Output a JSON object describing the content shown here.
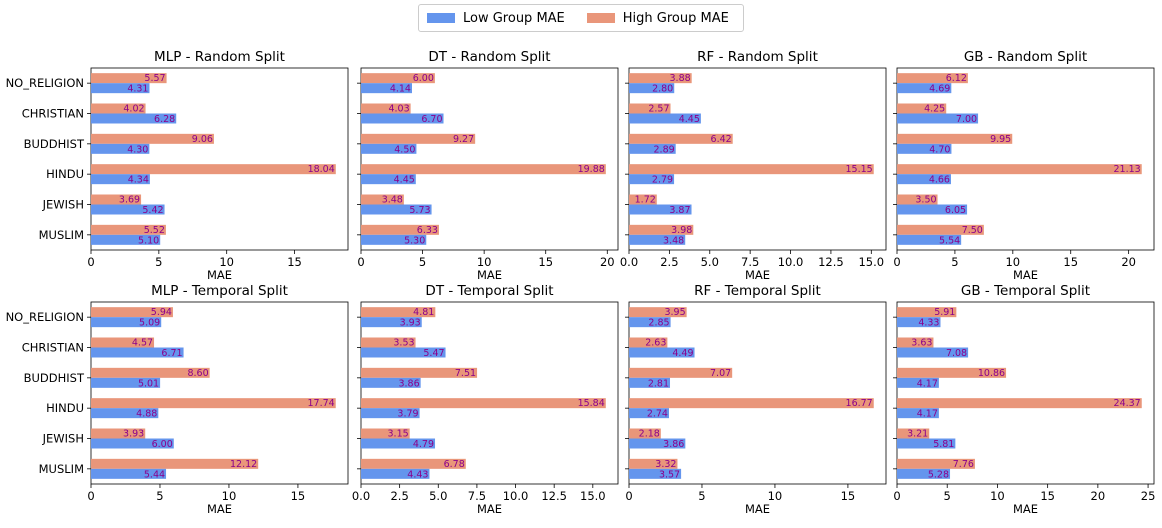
{
  "chart_data": {
    "type": "bar",
    "orientation": "horizontal",
    "categories": [
      "NO_RELIGION",
      "CHRISTIAN",
      "BUDDHIST",
      "HINDU",
      "JEWISH",
      "MUSLIM"
    ],
    "legend": {
      "position": "top-center",
      "entries": [
        {
          "name": "Low Group MAE",
          "color": "#6495ED"
        },
        {
          "name": "High Group MAE",
          "color": "#E9967A"
        }
      ]
    },
    "value_label_color": "#8B008B",
    "panels": [
      {
        "title": "MLP - Random Split",
        "xlabel": "MAE",
        "xlim": [
          0,
          18.94
        ],
        "xticks": [
          0,
          5,
          10,
          15
        ],
        "xtick_labels": [
          "0",
          "5",
          "10",
          "15"
        ],
        "show_category_labels": true,
        "series": [
          {
            "name": "Low Group MAE",
            "values": [
              4.31,
              6.28,
              4.3,
              4.34,
              5.42,
              5.1
            ]
          },
          {
            "name": "High Group MAE",
            "values": [
              5.57,
              4.02,
              9.06,
              18.04,
              3.69,
              5.52
            ]
          }
        ]
      },
      {
        "title": "DT - Random Split",
        "xlabel": "MAE",
        "xlim": [
          0,
          20.87
        ],
        "xticks": [
          0,
          5,
          10,
          15,
          20
        ],
        "xtick_labels": [
          "0",
          "5",
          "10",
          "15",
          "20"
        ],
        "show_category_labels": false,
        "series": [
          {
            "name": "Low Group MAE",
            "values": [
              4.14,
              6.7,
              4.5,
              4.45,
              5.73,
              5.3
            ]
          },
          {
            "name": "High Group MAE",
            "values": [
              6.0,
              4.03,
              9.27,
              19.88,
              3.48,
              6.33
            ]
          }
        ]
      },
      {
        "title": "RF - Random Split",
        "xlabel": "MAE",
        "xlim": [
          0,
          15.91
        ],
        "xticks": [
          0,
          2.5,
          5,
          7.5,
          10,
          12.5,
          15
        ],
        "xtick_labels": [
          "0.0",
          "2.5",
          "5.0",
          "7.5",
          "10.0",
          "12.5",
          "15.0"
        ],
        "show_category_labels": false,
        "series": [
          {
            "name": "Low Group MAE",
            "values": [
              2.8,
              4.45,
              2.89,
              2.79,
              3.87,
              3.48
            ]
          },
          {
            "name": "High Group MAE",
            "values": [
              3.88,
              2.57,
              6.42,
              15.15,
              1.72,
              3.98
            ]
          }
        ]
      },
      {
        "title": "GB - Random Split",
        "xlabel": "MAE",
        "xlim": [
          0,
          22.19
        ],
        "xticks": [
          0,
          5,
          10,
          15,
          20
        ],
        "xtick_labels": [
          "0",
          "5",
          "10",
          "15",
          "20"
        ],
        "show_category_labels": false,
        "series": [
          {
            "name": "Low Group MAE",
            "values": [
              4.69,
              7.0,
              4.7,
              4.66,
              6.05,
              5.54
            ]
          },
          {
            "name": "High Group MAE",
            "values": [
              6.12,
              4.25,
              9.95,
              21.13,
              3.5,
              7.5
            ]
          }
        ]
      },
      {
        "title": "MLP - Temporal Split",
        "xlabel": "MAE",
        "xlim": [
          0,
          18.63
        ],
        "xticks": [
          0,
          5,
          10,
          15
        ],
        "xtick_labels": [
          "0",
          "5",
          "10",
          "15"
        ],
        "show_category_labels": true,
        "series": [
          {
            "name": "Low Group MAE",
            "values": [
              5.09,
              6.71,
              5.01,
              4.88,
              6.0,
              5.44
            ]
          },
          {
            "name": "High Group MAE",
            "values": [
              5.94,
              4.57,
              8.6,
              17.74,
              3.93,
              12.12
            ]
          }
        ]
      },
      {
        "title": "DT - Temporal Split",
        "xlabel": "MAE",
        "xlim": [
          0,
          16.63
        ],
        "xticks": [
          0,
          2.5,
          5,
          7.5,
          10,
          12.5,
          15
        ],
        "xtick_labels": [
          "0.0",
          "2.5",
          "5.0",
          "7.5",
          "10.0",
          "12.5",
          "15.0"
        ],
        "show_category_labels": false,
        "series": [
          {
            "name": "Low Group MAE",
            "values": [
              3.93,
              5.47,
              3.86,
              3.79,
              4.79,
              4.43
            ]
          },
          {
            "name": "High Group MAE",
            "values": [
              4.81,
              3.53,
              7.51,
              15.84,
              3.15,
              6.78
            ]
          }
        ]
      },
      {
        "title": "RF - Temporal Split",
        "xlabel": "MAE",
        "xlim": [
          0,
          17.61
        ],
        "xticks": [
          0,
          5,
          10,
          15
        ],
        "xtick_labels": [
          "0",
          "5",
          "10",
          "15"
        ],
        "show_category_labels": false,
        "series": [
          {
            "name": "Low Group MAE",
            "values": [
              2.85,
              4.49,
              2.81,
              2.74,
              3.86,
              3.57
            ]
          },
          {
            "name": "High Group MAE",
            "values": [
              3.95,
              2.63,
              7.07,
              16.77,
              2.18,
              3.32
            ]
          }
        ]
      },
      {
        "title": "GB - Temporal Split",
        "xlabel": "MAE",
        "xlim": [
          0,
          25.59
        ],
        "xticks": [
          0,
          5,
          10,
          15,
          20,
          25
        ],
        "xtick_labels": [
          "0",
          "5",
          "10",
          "15",
          "20",
          "25"
        ],
        "show_category_labels": false,
        "series": [
          {
            "name": "Low Group MAE",
            "values": [
              4.33,
              7.08,
              4.17,
              4.17,
              5.81,
              5.28
            ]
          },
          {
            "name": "High Group MAE",
            "values": [
              5.91,
              3.63,
              10.86,
              24.37,
              3.21,
              7.76
            ]
          }
        ]
      }
    ]
  }
}
